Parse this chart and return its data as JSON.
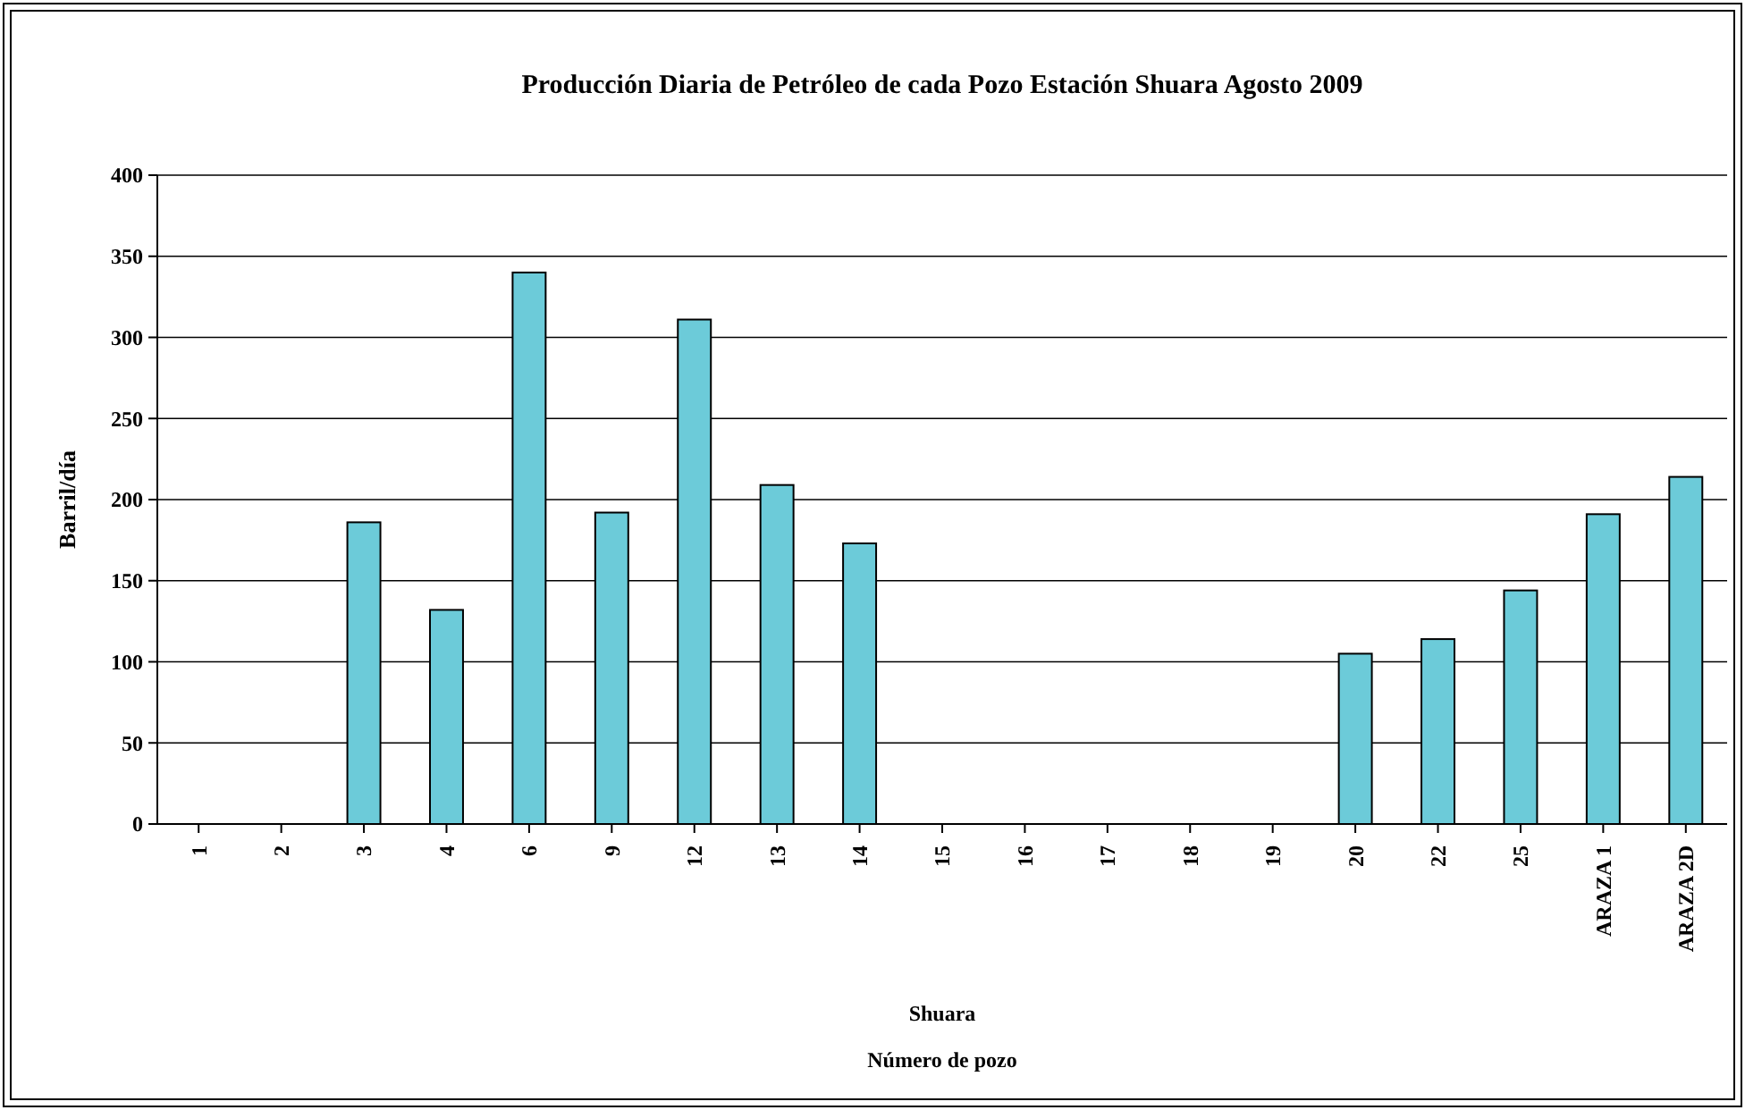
{
  "chart_data": {
    "type": "bar",
    "title": "Producción Diaria de Petróleo de cada Pozo Estación Shuara Agosto 2009",
    "xlabel": "Shuara",
    "ylabel": "Barril/día",
    "annotations": [
      "Número de pozo"
    ],
    "categories": [
      "1",
      "2",
      "3",
      "4",
      "6",
      "9",
      "12",
      "13",
      "14",
      "15",
      "16",
      "17",
      "18",
      "19",
      "20",
      "22",
      "25",
      "ARAZA 1",
      "ARAZA 2D"
    ],
    "values": [
      0,
      0,
      186,
      132,
      340,
      192,
      311,
      209,
      173,
      0,
      0,
      0,
      0,
      0,
      105,
      114,
      144,
      191,
      214
    ],
    "color": "#6ccbd9",
    "ylim": [
      0,
      400
    ],
    "yticks": [
      0,
      50,
      100,
      150,
      200,
      250,
      300,
      350,
      400
    ],
    "grid": "y"
  }
}
